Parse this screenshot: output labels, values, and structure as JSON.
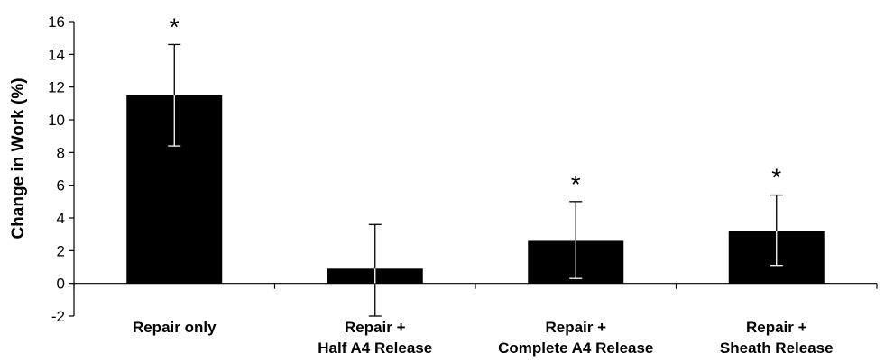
{
  "chart_data": {
    "type": "bar",
    "title": "",
    "xlabel": "",
    "ylabel": "Change in Work (%)",
    "ylim": [
      -2,
      16
    ],
    "yticks": [
      -2,
      0,
      2,
      4,
      6,
      8,
      10,
      12,
      14,
      16
    ],
    "grid": false,
    "categories": [
      [
        "Repair only"
      ],
      [
        "Repair +",
        "Half A4 Release"
      ],
      [
        "Repair +",
        "Complete A4 Release"
      ],
      [
        "Repair +",
        "Sheath Release"
      ]
    ],
    "values": [
      11.5,
      0.9,
      2.6,
      3.2
    ],
    "error_upper": [
      14.6,
      3.6,
      5.0,
      5.4
    ],
    "error_lower": [
      8.4,
      -2.0,
      0.3,
      1.1
    ],
    "significance": [
      "*",
      "",
      "*",
      "*"
    ],
    "bar_color": "#000000"
  }
}
